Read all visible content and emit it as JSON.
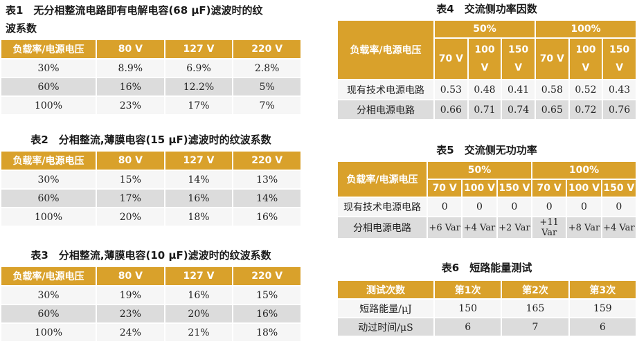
{
  "table1": {
    "caption_line1": "表1　无分相整流电路即有电解电容(68 μF)滤波时的纹",
    "caption_line2": "波系数",
    "headers": [
      "负载率/电源电压",
      "80 V",
      "127 V",
      "220 V"
    ],
    "rows": [
      [
        "30%",
        "8.9%",
        "6.9%",
        "2.8%"
      ],
      [
        "60%",
        "16%",
        "12.2%",
        "5%"
      ],
      [
        "100%",
        "23%",
        "17%",
        "7%"
      ]
    ]
  },
  "table2": {
    "caption": "表2　分相整流,薄膜电容(15 μF)滤波时的纹波系数",
    "headers": [
      "负载率/电源电压",
      "80 V",
      "127 V",
      "220 V"
    ],
    "rows": [
      [
        "30%",
        "15%",
        "14%",
        "13%"
      ],
      [
        "60%",
        "17%",
        "16%",
        "14%"
      ],
      [
        "100%",
        "20%",
        "18%",
        "16%"
      ]
    ]
  },
  "table3": {
    "caption": "表3　分相整流,薄膜电容(10 μF)滤波时的纹波系数",
    "headers": [
      "负载率/电源电压",
      "80 V",
      "127 V",
      "220 V"
    ],
    "rows": [
      [
        "30%",
        "19%",
        "16%",
        "15%"
      ],
      [
        "60%",
        "23%",
        "20%",
        "16%"
      ],
      [
        "100%",
        "24%",
        "21%",
        "18%"
      ]
    ]
  },
  "table4": {
    "caption": "表4　交流侧功率因数",
    "corner": "负载率/电源电压",
    "groups": [
      "50%",
      "100%"
    ],
    "subheaders": [
      "70 V",
      "100 V",
      "150 V",
      "70 V",
      "100 V",
      "150 V"
    ],
    "rows": [
      {
        "label": "现有技术电源电路",
        "values": [
          "0.53",
          "0.48",
          "0.41",
          "0.58",
          "0.52",
          "0.43"
        ]
      },
      {
        "label": "分相电源电路",
        "values": [
          "0.66",
          "0.71",
          "0.74",
          "0.65",
          "0.72",
          "0.76"
        ]
      }
    ]
  },
  "table5": {
    "caption": "表5　交流侧无功功率",
    "corner": "负载率/电源电压",
    "groups": [
      "50%",
      "100%"
    ],
    "subheaders": [
      "70 V",
      "100 V",
      "150 V",
      "70 V",
      "100 V",
      "150 V"
    ],
    "rows": [
      {
        "label": "现有技术电源电路",
        "values": [
          "0",
          "0",
          "0",
          "0",
          "0",
          "0"
        ]
      },
      {
        "label": "分相电源电路",
        "values": [
          "+6 Var",
          "+4 Var",
          "+2 Var",
          "+11 Var",
          "+8 Var",
          "+4 Var"
        ]
      }
    ]
  },
  "table6": {
    "caption": "表6　短路能量测试",
    "headers": [
      "测试次数",
      "第1次",
      "第2次",
      "第3次"
    ],
    "rows": [
      {
        "label": "短路能量/μJ",
        "values": [
          "150",
          "165",
          "159"
        ]
      },
      {
        "label": "动过时间/μS",
        "values": [
          "6",
          "7",
          "6"
        ]
      }
    ]
  }
}
